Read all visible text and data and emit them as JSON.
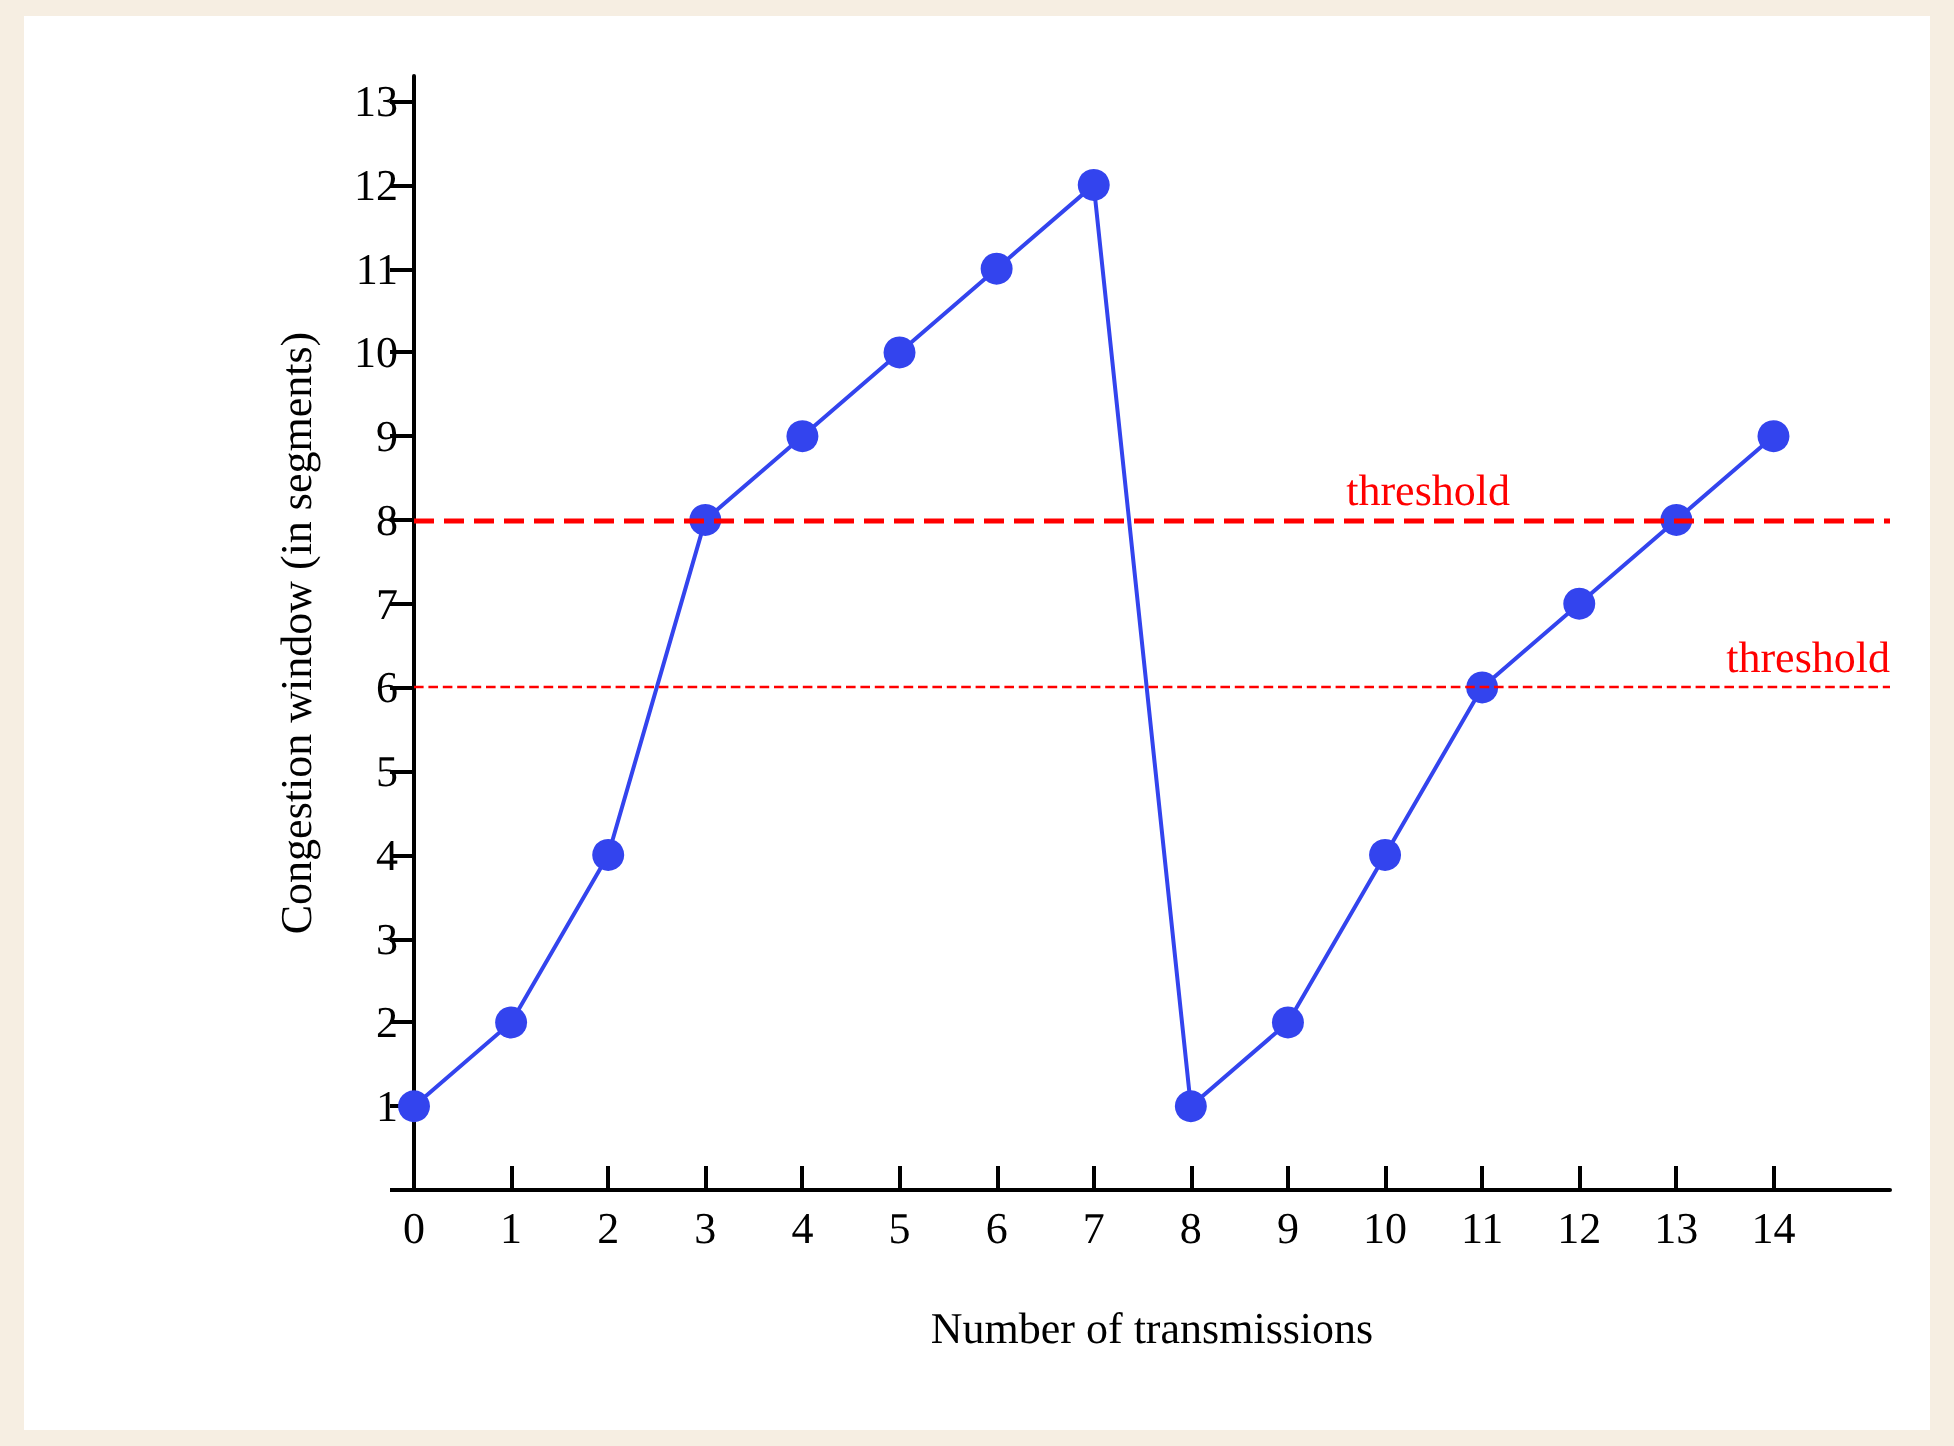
{
  "chart_data": {
    "type": "line",
    "xlabel": "Number of transmissions",
    "ylabel": "Congestion window (in segments)",
    "x": [
      0,
      1,
      2,
      3,
      4,
      5,
      6,
      7,
      8,
      9,
      10,
      11,
      12,
      13,
      14
    ],
    "series": [
      {
        "color": "#3344ee",
        "values": [
          1,
          2,
          4,
          8,
          9,
          10,
          11,
          12,
          1,
          2,
          4,
          6,
          7,
          8,
          9
        ]
      }
    ],
    "xlim": [
      0,
      15.2
    ],
    "xticks": [
      0,
      1,
      2,
      3,
      4,
      5,
      6,
      7,
      8,
      9,
      10,
      11,
      12,
      13,
      14
    ],
    "ylim": [
      0,
      13.3
    ],
    "yticks": [
      {
        "value": 0,
        "label": null
      },
      1,
      2,
      3,
      4,
      5,
      6,
      7,
      8,
      9,
      10,
      11,
      12,
      13
    ],
    "ref_lines": [
      {
        "axis": "y",
        "value": 8,
        "label": "threshold",
        "color": "#ff0000",
        "line_style": "dashed"
      },
      {
        "axis": "y",
        "value": 6,
        "label": "threshold",
        "color": "#ff0000",
        "line_style": "dashed"
      }
    ],
    "marker": "circle",
    "line_style": "solid"
  }
}
